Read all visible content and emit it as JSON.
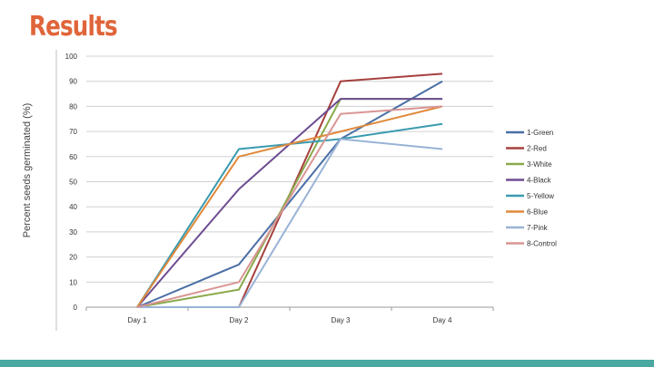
{
  "slide": {
    "title": "Results",
    "title_color": "#e0653a",
    "footer_color": "#4aa8a0"
  },
  "chart_data": {
    "type": "line",
    "title": "",
    "xlabel": "",
    "ylabel": "Percent seeds germinated (%)",
    "ylim": [
      0,
      100
    ],
    "yticks": [
      0,
      10,
      20,
      30,
      40,
      50,
      60,
      70,
      80,
      90,
      100
    ],
    "grid": true,
    "legend_position": "right",
    "categories": [
      "Day 1",
      "Day 2",
      "Day 3",
      "Day 4"
    ],
    "series": [
      {
        "name": "1-Green",
        "color": "#4a6fa5",
        "values": [
          0,
          17,
          67,
          90
        ]
      },
      {
        "name": "2-Red",
        "color": "#a5403d",
        "values": [
          0,
          0,
          90,
          93
        ]
      },
      {
        "name": "3-White",
        "color": "#8aa94a",
        "values": [
          0,
          7,
          83,
          83
        ]
      },
      {
        "name": "4-Black",
        "color": "#6e4c92",
        "values": [
          0,
          47,
          83,
          83
        ]
      },
      {
        "name": "5-Yellow",
        "color": "#3a9bb0",
        "values": [
          0,
          63,
          67,
          73
        ]
      },
      {
        "name": "6-Blue",
        "color": "#e0893a",
        "values": [
          0,
          60,
          70,
          80
        ]
      },
      {
        "name": "7-Pink",
        "color": "#99b3d6",
        "values": [
          0,
          0,
          67,
          63
        ]
      },
      {
        "name": "8-Control",
        "color": "#d99594",
        "values": [
          0,
          10,
          77,
          80
        ]
      }
    ]
  }
}
